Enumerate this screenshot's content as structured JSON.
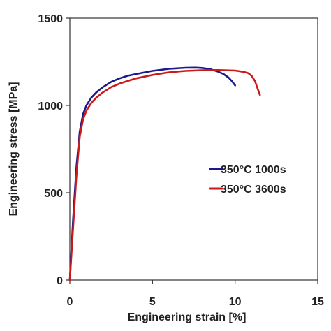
{
  "chart_data": {
    "type": "line",
    "title": "",
    "xlabel": "Engineering strain [%]",
    "ylabel": "Engineering stress [MPa]",
    "xlim": [
      0,
      15
    ],
    "ylim": [
      0,
      1500
    ],
    "xticks": [
      "0",
      "5",
      "10",
      "15"
    ],
    "yticks": [
      "0",
      "500",
      "1000",
      "1500"
    ],
    "grid": false,
    "legend": "center-right",
    "series": [
      {
        "name": "350°C 1000s",
        "color": "#1a1a8c",
        "x": [
          0,
          0.2,
          0.4,
          0.6,
          0.8,
          1.0,
          1.3,
          1.6,
          2.0,
          2.5,
          3.0,
          3.5,
          4.0,
          5.0,
          6.0,
          7.0,
          7.6,
          8.0,
          8.5,
          9.0,
          9.3,
          9.6,
          9.8,
          10.0
        ],
        "y": [
          0,
          350,
          650,
          850,
          950,
          1000,
          1045,
          1075,
          1105,
          1135,
          1155,
          1170,
          1180,
          1198,
          1210,
          1216,
          1217,
          1215,
          1208,
          1193,
          1180,
          1160,
          1140,
          1115
        ]
      },
      {
        "name": "350°C 3600s",
        "color": "#cc1a1a",
        "x": [
          0,
          0.2,
          0.4,
          0.6,
          0.8,
          1.0,
          1.3,
          1.6,
          2.0,
          2.5,
          3.0,
          4.0,
          5.0,
          6.0,
          7.0,
          8.0,
          9.0,
          10.0,
          10.5,
          10.8,
          11.0,
          11.2,
          11.35,
          11.5
        ],
        "y": [
          0,
          300,
          600,
          820,
          920,
          970,
          1015,
          1045,
          1075,
          1105,
          1125,
          1155,
          1175,
          1190,
          1198,
          1202,
          1203,
          1200,
          1193,
          1185,
          1170,
          1140,
          1100,
          1060
        ]
      }
    ]
  }
}
